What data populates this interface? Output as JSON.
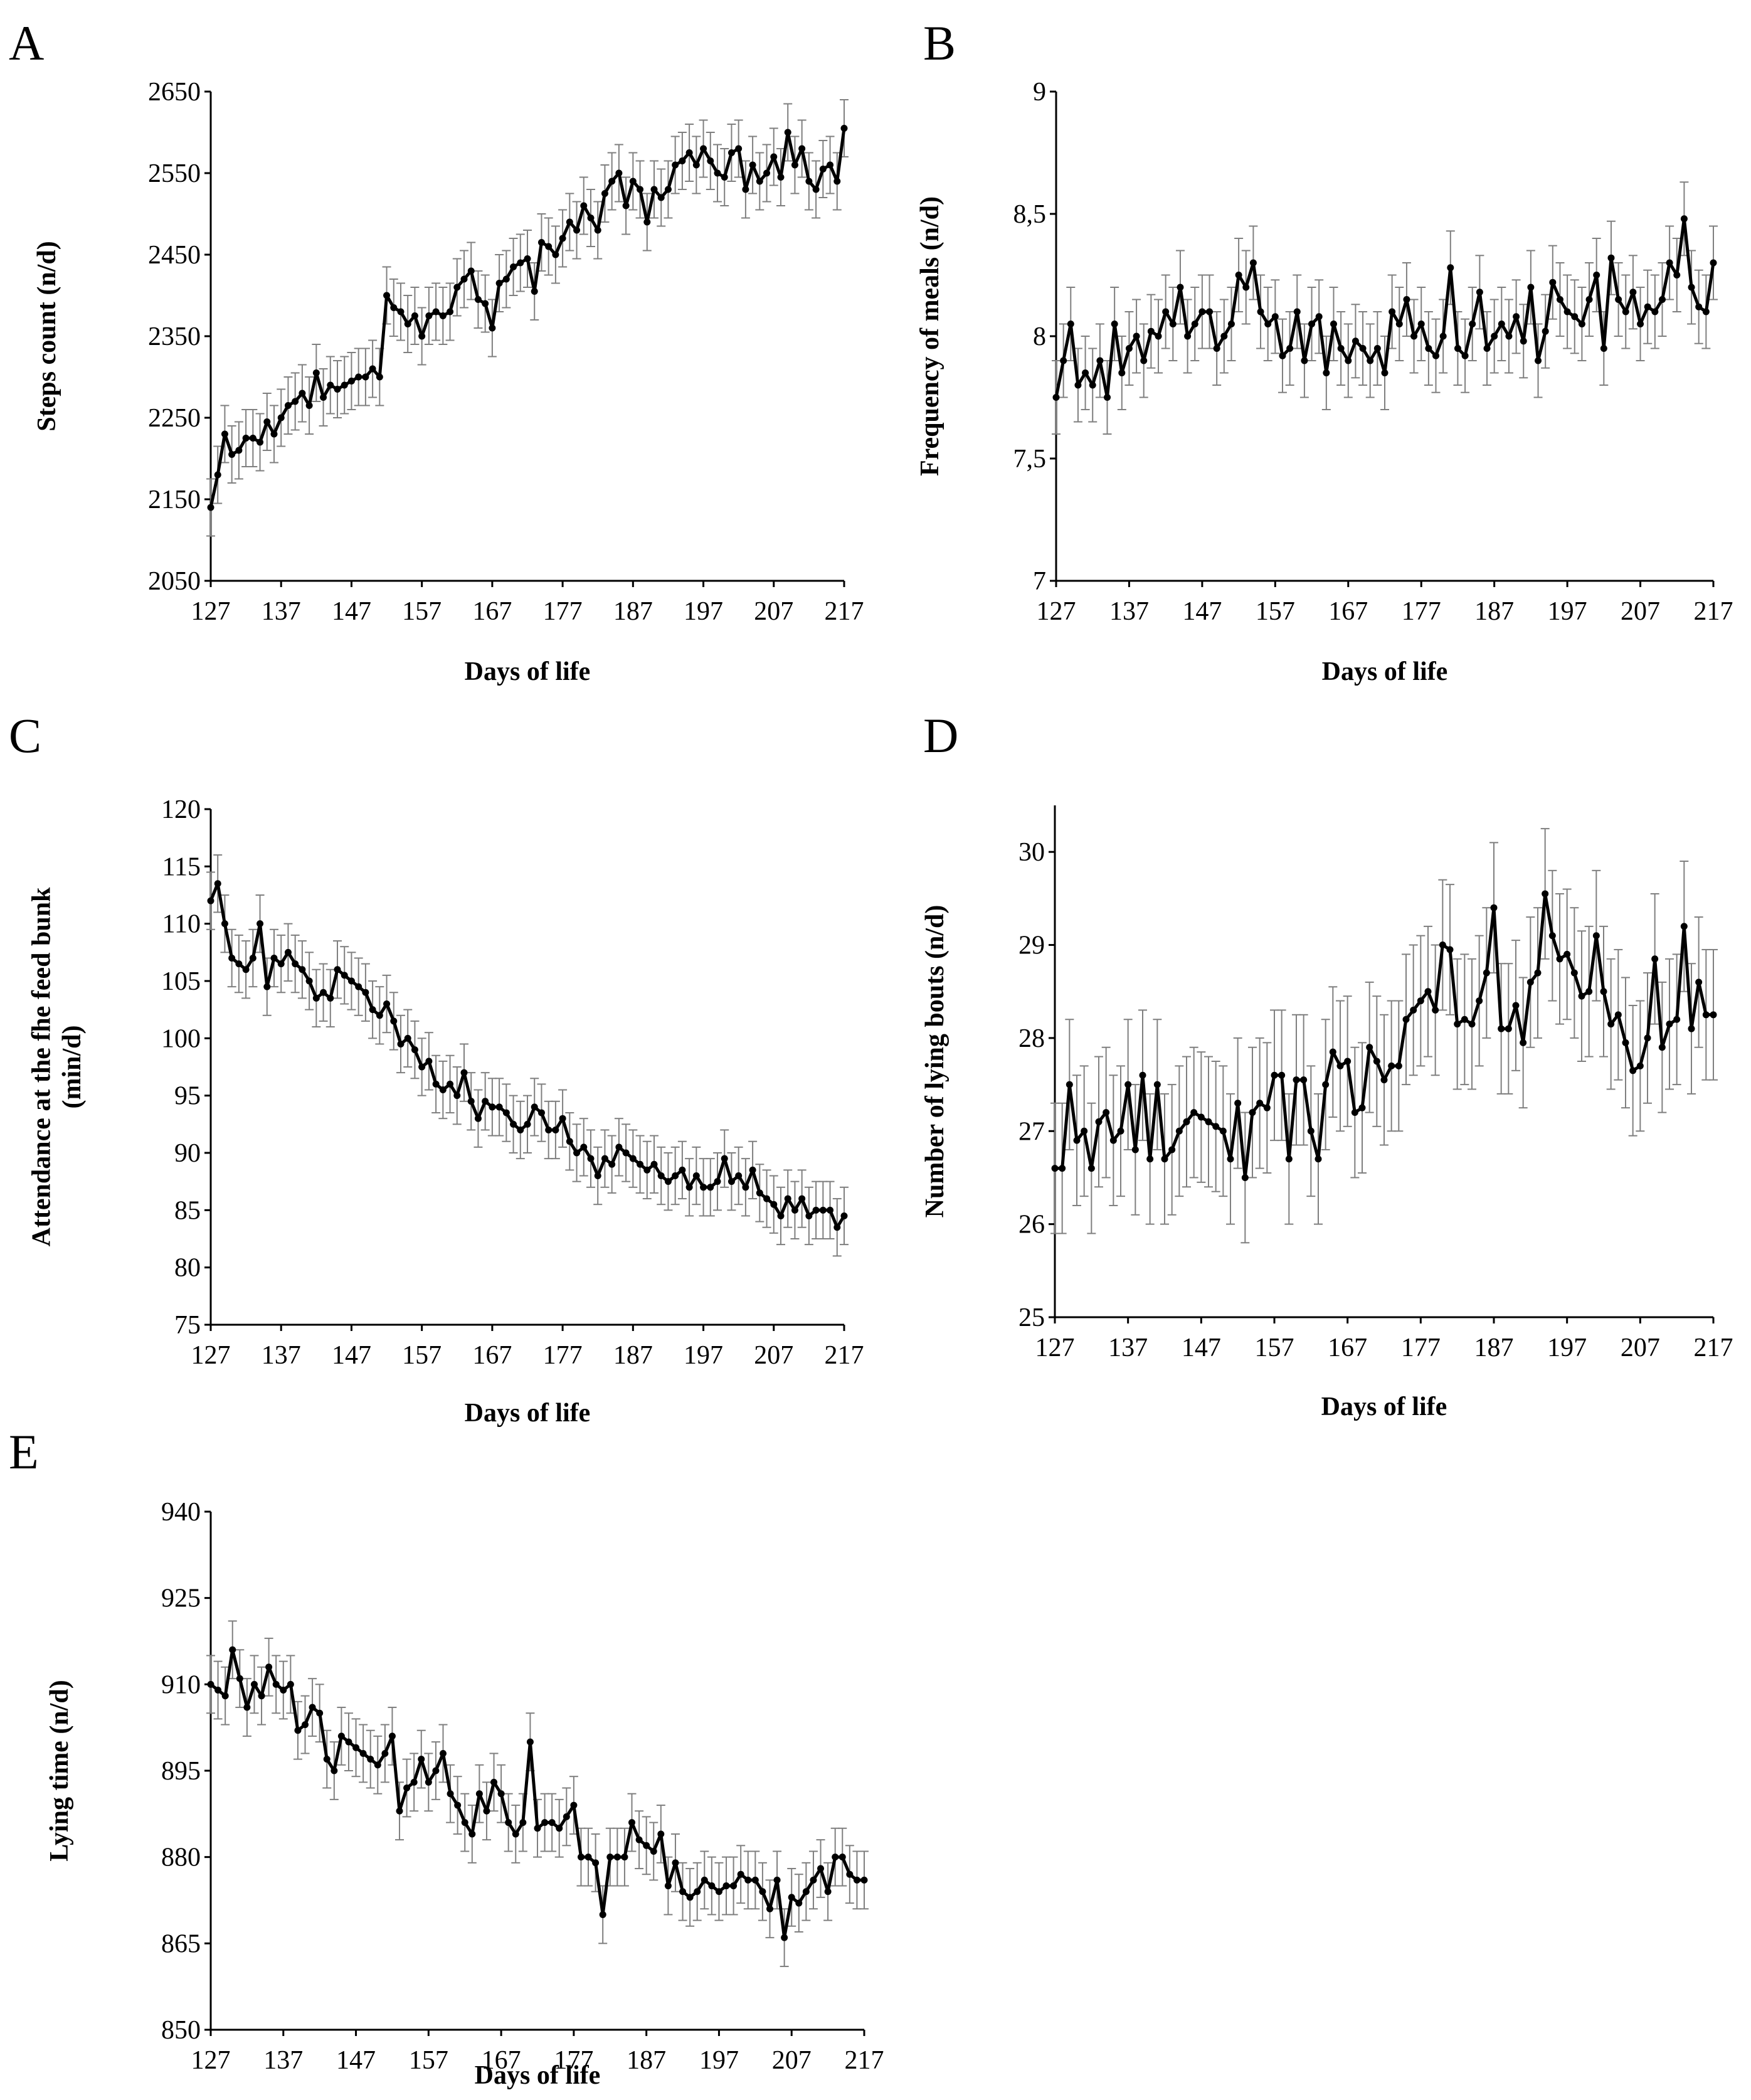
{
  "chart_data": [
    {
      "panel": "A",
      "type": "line",
      "xlabel": "Days of life",
      "ylabel": "Steps count (n/d)",
      "xlim": [
        127,
        217
      ],
      "ylim": [
        2050,
        2650
      ],
      "xticks": [
        "127",
        "137",
        "147",
        "157",
        "167",
        "177",
        "187",
        "197",
        "207",
        "217"
      ],
      "yticks": [
        "2050",
        "2150",
        "2250",
        "2350",
        "2450",
        "2550",
        "2650"
      ],
      "error_bars": true,
      "color": "#000000",
      "error_color": "#7f7f7f",
      "x": [
        127,
        128,
        129,
        130,
        131,
        132,
        133,
        134,
        135,
        136,
        137,
        138,
        139,
        140,
        141,
        142,
        143,
        144,
        145,
        146,
        147,
        148,
        149,
        150,
        151,
        152,
        153,
        154,
        155,
        156,
        157,
        158,
        159,
        160,
        161,
        162,
        163,
        164,
        165,
        166,
        167,
        168,
        169,
        170,
        171,
        172,
        173,
        174,
        175,
        176,
        177,
        178,
        179,
        180,
        181,
        182,
        183,
        184,
        185,
        186,
        187,
        188,
        189,
        190,
        191,
        192,
        193,
        194,
        195,
        196,
        197,
        198,
        199,
        200,
        201,
        202,
        203,
        204,
        205,
        206,
        207,
        208,
        209,
        210,
        211,
        212,
        213,
        214,
        215,
        216,
        217
      ],
      "y": [
        2140,
        2180,
        2230,
        2205,
        2210,
        2225,
        2225,
        2220,
        2245,
        2230,
        2250,
        2265,
        2270,
        2280,
        2265,
        2305,
        2275,
        2290,
        2285,
        2290,
        2295,
        2300,
        2300,
        2310,
        2300,
        2400,
        2385,
        2380,
        2365,
        2375,
        2350,
        2375,
        2380,
        2375,
        2380,
        2410,
        2420,
        2430,
        2395,
        2390,
        2360,
        2415,
        2420,
        2435,
        2440,
        2445,
        2405,
        2465,
        2460,
        2450,
        2470,
        2490,
        2480,
        2510,
        2495,
        2480,
        2525,
        2540,
        2550,
        2510,
        2540,
        2530,
        2490,
        2530,
        2520,
        2530,
        2560,
        2565,
        2575,
        2560,
        2580,
        2565,
        2550,
        2545,
        2575,
        2580,
        2530,
        2560,
        2540,
        2550,
        2570,
        2545,
        2600,
        2560,
        2580,
        2540,
        2530,
        2555,
        2560,
        2540,
        2605
      ],
      "err": 35
    },
    {
      "panel": "B",
      "type": "line",
      "xlabel": "Days of life",
      "ylabel": "Frequency of meals (n/d)",
      "xlim": [
        127,
        217
      ],
      "ylim": [
        7,
        9
      ],
      "xticks": [
        "127",
        "137",
        "147",
        "157",
        "167",
        "177",
        "187",
        "197",
        "207",
        "217"
      ],
      "yticks": [
        "7",
        "7,5",
        "8",
        "8,5",
        "9"
      ],
      "error_bars": true,
      "color": "#000000",
      "error_color": "#7f7f7f",
      "x": [
        127,
        128,
        129,
        130,
        131,
        132,
        133,
        134,
        135,
        136,
        137,
        138,
        139,
        140,
        141,
        142,
        143,
        144,
        145,
        146,
        147,
        148,
        149,
        150,
        151,
        152,
        153,
        154,
        155,
        156,
        157,
        158,
        159,
        160,
        161,
        162,
        163,
        164,
        165,
        166,
        167,
        168,
        169,
        170,
        171,
        172,
        173,
        174,
        175,
        176,
        177,
        178,
        179,
        180,
        181,
        182,
        183,
        184,
        185,
        186,
        187,
        188,
        189,
        190,
        191,
        192,
        193,
        194,
        195,
        196,
        197,
        198,
        199,
        200,
        201,
        202,
        203,
        204,
        205,
        206,
        207,
        208,
        209,
        210,
        211,
        212,
        213,
        214,
        215,
        216,
        217
      ],
      "y": [
        7.75,
        7.9,
        8.05,
        7.8,
        7.85,
        7.8,
        7.9,
        7.75,
        8.05,
        7.85,
        7.95,
        8.0,
        7.9,
        8.02,
        8.0,
        8.1,
        8.05,
        8.2,
        8.0,
        8.05,
        8.1,
        8.1,
        7.95,
        8.0,
        8.05,
        8.25,
        8.2,
        8.3,
        8.1,
        8.05,
        8.08,
        7.92,
        7.95,
        8.1,
        7.9,
        8.05,
        8.08,
        7.85,
        8.05,
        7.95,
        7.9,
        7.98,
        7.95,
        7.9,
        7.95,
        7.85,
        8.1,
        8.05,
        8.15,
        8.0,
        8.05,
        7.95,
        7.92,
        8.0,
        8.28,
        7.95,
        7.92,
        8.05,
        8.18,
        7.95,
        8.0,
        8.05,
        8.0,
        8.08,
        7.98,
        8.2,
        7.9,
        8.02,
        8.22,
        8.15,
        8.1,
        8.08,
        8.05,
        8.15,
        8.25,
        7.95,
        8.32,
        8.15,
        8.1,
        8.18,
        8.05,
        8.12,
        8.1,
        8.15,
        8.3,
        8.25,
        8.48,
        8.2,
        8.12,
        8.1,
        8.3
      ],
      "err": 0.15
    },
    {
      "panel": "C",
      "type": "line",
      "xlabel": "Days of life",
      "ylabel": "Attendance at the fhe feed bunk (min/d)",
      "xlim": [
        127,
        217
      ],
      "ylim": [
        75,
        120
      ],
      "xticks": [
        "127",
        "137",
        "147",
        "157",
        "167",
        "177",
        "187",
        "197",
        "207",
        "217"
      ],
      "yticks": [
        "75",
        "80",
        "85",
        "90",
        "95",
        "100",
        "105",
        "110",
        "115",
        "120"
      ],
      "error_bars": true,
      "color": "#000000",
      "error_color": "#7f7f7f",
      "x": [
        127,
        128,
        129,
        130,
        131,
        132,
        133,
        134,
        135,
        136,
        137,
        138,
        139,
        140,
        141,
        142,
        143,
        144,
        145,
        146,
        147,
        148,
        149,
        150,
        151,
        152,
        153,
        154,
        155,
        156,
        157,
        158,
        159,
        160,
        161,
        162,
        163,
        164,
        165,
        166,
        167,
        168,
        169,
        170,
        171,
        172,
        173,
        174,
        175,
        176,
        177,
        178,
        179,
        180,
        181,
        182,
        183,
        184,
        185,
        186,
        187,
        188,
        189,
        190,
        191,
        192,
        193,
        194,
        195,
        196,
        197,
        198,
        199,
        200,
        201,
        202,
        203,
        204,
        205,
        206,
        207,
        208,
        209,
        210,
        211,
        212,
        213,
        214,
        215,
        216,
        217
      ],
      "y": [
        112,
        113.5,
        110,
        107,
        106.5,
        106,
        107,
        110,
        104.5,
        107,
        106.5,
        107.5,
        106.5,
        106,
        105,
        103.5,
        104,
        103.5,
        106,
        105.5,
        105,
        104.5,
        104,
        102.5,
        102,
        103,
        101.5,
        99.5,
        100,
        99,
        97.5,
        98,
        96,
        95.5,
        96,
        95,
        97,
        94.5,
        93,
        94.5,
        94,
        94,
        93.5,
        92.5,
        92,
        92.5,
        94,
        93.5,
        92,
        92,
        93,
        91,
        90,
        90.5,
        89.5,
        88,
        89.5,
        89,
        90.5,
        90,
        89.5,
        89,
        88.5,
        89,
        88,
        87.5,
        88,
        88.5,
        87,
        88,
        87,
        87,
        87.5,
        89.5,
        87.5,
        88,
        87,
        88.5,
        86.5,
        86,
        85.5,
        84.5,
        86,
        85,
        86,
        84.5,
        85,
        85,
        85,
        83.5,
        84.5
      ],
      "err": 2.5
    },
    {
      "panel": "D",
      "type": "line",
      "xlabel": "Days of life",
      "ylabel": "Number of lying bouts (n/d)",
      "xlim": [
        127,
        217
      ],
      "ylim": [
        25,
        30.5
      ],
      "xticks": [
        "127",
        "137",
        "147",
        "157",
        "167",
        "177",
        "187",
        "197",
        "207",
        "217"
      ],
      "yticks": [
        "25",
        "26",
        "27",
        "28",
        "29",
        "30"
      ],
      "error_bars": true,
      "color": "#000000",
      "error_color": "#7f7f7f",
      "x": [
        127,
        128,
        129,
        130,
        131,
        132,
        133,
        134,
        135,
        136,
        137,
        138,
        139,
        140,
        141,
        142,
        143,
        144,
        145,
        146,
        147,
        148,
        149,
        150,
        151,
        152,
        153,
        154,
        155,
        156,
        157,
        158,
        159,
        160,
        161,
        162,
        163,
        164,
        165,
        166,
        167,
        168,
        169,
        170,
        171,
        172,
        173,
        174,
        175,
        176,
        177,
        178,
        179,
        180,
        181,
        182,
        183,
        184,
        185,
        186,
        187,
        188,
        189,
        190,
        191,
        192,
        193,
        194,
        195,
        196,
        197,
        198,
        199,
        200,
        201,
        202,
        203,
        204,
        205,
        206,
        207,
        208,
        209,
        210,
        211,
        212,
        213,
        214,
        215,
        216,
        217
      ],
      "y": [
        26.6,
        26.6,
        27.5,
        26.9,
        27.0,
        26.6,
        27.1,
        27.2,
        26.9,
        27.0,
        27.5,
        26.8,
        27.6,
        26.7,
        27.5,
        26.7,
        26.8,
        27.0,
        27.1,
        27.2,
        27.15,
        27.1,
        27.05,
        27.0,
        26.7,
        27.3,
        26.5,
        27.2,
        27.3,
        27.25,
        27.6,
        27.6,
        26.7,
        27.55,
        27.55,
        27.0,
        26.7,
        27.5,
        27.85,
        27.7,
        27.75,
        27.2,
        27.25,
        27.9,
        27.75,
        27.55,
        27.7,
        27.7,
        28.2,
        28.3,
        28.4,
        28.5,
        28.3,
        29.0,
        28.95,
        28.15,
        28.2,
        28.15,
        28.4,
        28.7,
        29.4,
        28.1,
        28.1,
        28.35,
        27.95,
        28.6,
        28.7,
        29.55,
        29.1,
        28.85,
        28.9,
        28.7,
        28.45,
        28.5,
        29.1,
        28.5,
        28.15,
        28.25,
        27.95,
        27.65,
        27.7,
        28.0,
        28.85,
        27.9,
        28.15,
        28.2,
        29.2,
        28.1,
        28.6,
        28.25,
        28.25
      ],
      "err": 0.7
    },
    {
      "panel": "E",
      "type": "line",
      "xlabel": "Days of life",
      "ylabel": "Lying time (n/d)",
      "xlim": [
        127,
        217
      ],
      "ylim": [
        850,
        940
      ],
      "xticks": [
        "127",
        "137",
        "147",
        "157",
        "167",
        "177",
        "187",
        "197",
        "207",
        "217"
      ],
      "yticks": [
        "850",
        "865",
        "880",
        "895",
        "910",
        "925",
        "940"
      ],
      "error_bars": true,
      "color": "#000000",
      "error_color": "#7f7f7f",
      "x": [
        127,
        128,
        129,
        130,
        131,
        132,
        133,
        134,
        135,
        136,
        137,
        138,
        139,
        140,
        141,
        142,
        143,
        144,
        145,
        146,
        147,
        148,
        149,
        150,
        151,
        152,
        153,
        154,
        155,
        156,
        157,
        158,
        159,
        160,
        161,
        162,
        163,
        164,
        165,
        166,
        167,
        168,
        169,
        170,
        171,
        172,
        173,
        174,
        175,
        176,
        177,
        178,
        179,
        180,
        181,
        182,
        183,
        184,
        185,
        186,
        187,
        188,
        189,
        190,
        191,
        192,
        193,
        194,
        195,
        196,
        197,
        198,
        199,
        200,
        201,
        202,
        203,
        204,
        205,
        206,
        207,
        208,
        209,
        210,
        211,
        212,
        213,
        214,
        215,
        216,
        217
      ],
      "y": [
        910,
        909,
        908,
        916,
        911,
        906,
        910,
        908,
        913,
        910,
        909,
        910,
        902,
        903,
        906,
        905,
        897,
        895,
        901,
        900,
        899,
        898,
        897,
        896,
        898,
        901,
        888,
        892,
        893,
        897,
        893,
        895,
        898,
        891,
        889,
        886,
        884,
        891,
        888,
        893,
        891,
        886,
        884,
        886,
        900,
        885,
        886,
        886,
        885,
        887,
        889,
        880,
        880,
        879,
        870,
        880,
        880,
        880,
        886,
        883,
        882,
        881,
        884,
        875,
        879,
        874,
        873,
        874,
        876,
        875,
        874,
        875,
        875,
        877,
        876,
        876,
        874,
        871,
        876,
        866,
        873,
        872,
        874,
        876,
        878,
        874,
        880,
        880,
        877,
        876,
        876
      ],
      "err": 5
    }
  ]
}
